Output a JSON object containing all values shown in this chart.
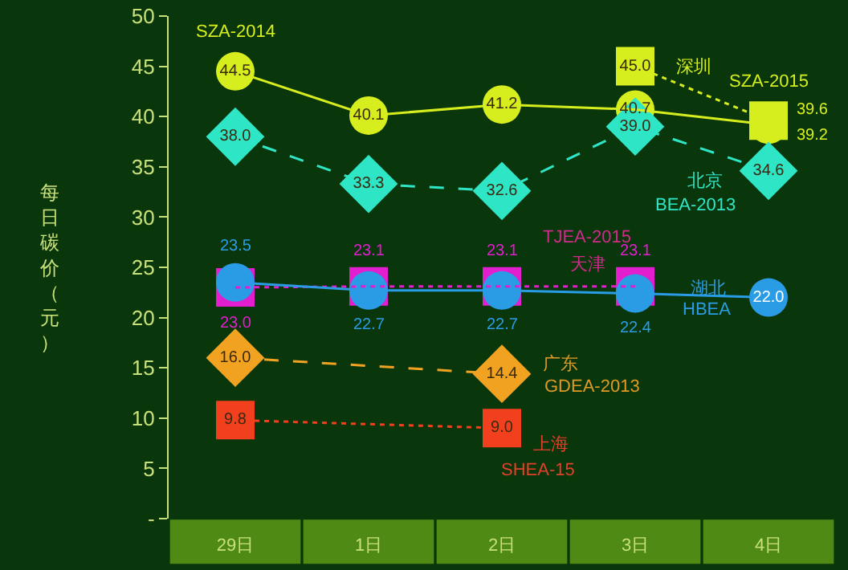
{
  "chart_data": {
    "type": "line",
    "ylabel": "每日碳价（元）",
    "categories": [
      "29日",
      "1日",
      "2日",
      "3日",
      "4日"
    ],
    "ylim": [
      0,
      50
    ],
    "yticks": [
      {
        "value": 0,
        "label": "-"
      },
      5,
      10,
      15,
      20,
      25,
      30,
      35,
      40,
      45,
      50
    ],
    "series": [
      {
        "color": "#d6ee1e",
        "values": [
          44.5,
          40.1,
          41.2,
          40.7,
          39.2
        ],
        "value_labels": [
          "44.5",
          "40.1",
          "41.2",
          "40.7",
          "39.2"
        ],
        "marker": "circle",
        "line_style": "solid"
      },
      {
        "color": "#d6ee1e",
        "values": [
          null,
          null,
          null,
          45.0,
          39.6
        ],
        "value_labels": [
          null,
          null,
          null,
          "45.0",
          "39.6"
        ],
        "marker": "square",
        "line_style": "dotted"
      },
      {
        "color": "#2ee6c6",
        "values": [
          38.0,
          33.3,
          32.6,
          39.0,
          34.6
        ],
        "value_labels": [
          "38.0",
          "33.3",
          "32.6",
          "39.0",
          "34.6"
        ],
        "marker": "diamond",
        "line_style": "dashed"
      },
      {
        "color": "#e21ecf",
        "values": [
          23.0,
          23.1,
          23.1,
          23.1,
          null
        ],
        "value_labels": [
          "23.0",
          "23.1",
          "23.1",
          "23.1",
          null
        ],
        "marker": "square",
        "line_style": "dotted"
      },
      {
        "color": "#2a9ce6",
        "values": [
          23.5,
          22.7,
          22.7,
          22.4,
          22.0
        ],
        "value_labels": [
          "23.5",
          "22.7",
          "22.7",
          "22.4",
          "22.0"
        ],
        "marker": "circle",
        "line_style": "solid"
      },
      {
        "color": "#f2a221",
        "values": [
          16.0,
          null,
          14.4,
          null,
          null
        ],
        "value_labels": [
          "16.0",
          null,
          "14.4",
          null,
          null
        ],
        "marker": "diamond",
        "line_style": "dashed"
      },
      {
        "color": "#f2401e",
        "values": [
          9.8,
          null,
          9.0,
          null,
          null
        ],
        "value_labels": [
          "9.8",
          null,
          "9.0",
          null,
          null
        ],
        "marker": "square",
        "line_style": "dotted"
      }
    ],
    "annotations": [
      {
        "text": "SZA-2014",
        "x": "29日",
        "y": 44.5
      },
      {
        "text": "SZA-2015",
        "x": "4日",
        "y": 39.6
      },
      {
        "text": "深圳",
        "x": "3日",
        "y": 45.0
      },
      {
        "text": "北京",
        "x": "4日",
        "y": 34.6
      },
      {
        "text": "BEA-2013",
        "x": "4日",
        "y": 34.6
      },
      {
        "text": "TJEA-2015",
        "x": "3日",
        "y": 23.1
      },
      {
        "text": "天津",
        "x": "3日",
        "y": 23.1
      },
      {
        "text": "湖北",
        "x": "4日",
        "y": 22.0
      },
      {
        "text": "HBEA",
        "x": "4日",
        "y": 22.0
      },
      {
        "text": "广东",
        "x": "2日",
        "y": 14.4
      },
      {
        "text": "GDEA-2013",
        "x": "2日",
        "y": 14.4
      },
      {
        "text": "上海",
        "x": "2日",
        "y": 9.0
      },
      {
        "text": "SHEA-15",
        "x": "2日",
        "y": 9.0
      }
    ]
  }
}
